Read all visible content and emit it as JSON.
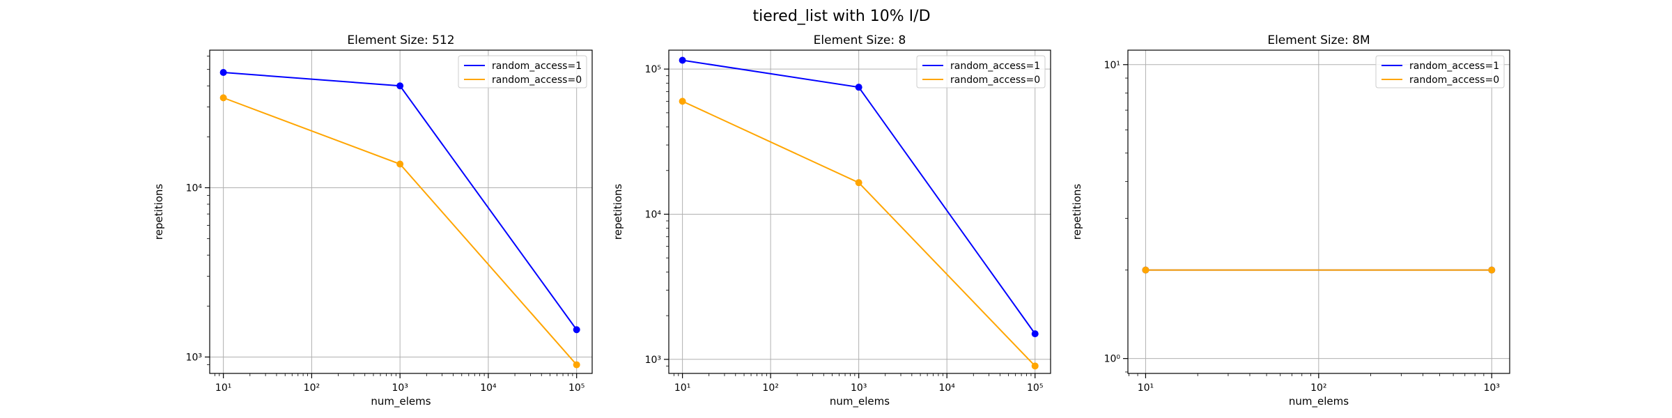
{
  "figure_title": "tiered_list with 10% I/D",
  "chart_data": [
    {
      "type": "line",
      "title": "Element Size: 512",
      "xlabel": "num_elems",
      "ylabel": "repetitions",
      "xscale": "log",
      "yscale": "log",
      "xlim": [
        7,
        150000
      ],
      "ylim": [
        800,
        65000
      ],
      "x_ticks": [
        10,
        100,
        1000,
        10000,
        100000
      ],
      "x_tick_labels": [
        "10¹",
        "10²",
        "10³",
        "10⁴",
        "10⁵"
      ],
      "y_ticks": [
        1000,
        10000
      ],
      "y_tick_labels": [
        "10³",
        "10⁴"
      ],
      "grid": true,
      "legend_position": "upper right",
      "series": [
        {
          "name": "random_access=1",
          "color": "#0000ff",
          "x": [
            10,
            1000,
            100000
          ],
          "y": [
            48000,
            40000,
            1450
          ]
        },
        {
          "name": "random_access=0",
          "color": "#ffa500",
          "x": [
            10,
            1000,
            100000
          ],
          "y": [
            34000,
            13800,
            900
          ]
        }
      ]
    },
    {
      "type": "line",
      "title": "Element Size: 8",
      "xlabel": "num_elems",
      "ylabel": "repetitions",
      "xscale": "log",
      "yscale": "log",
      "xlim": [
        7,
        150000
      ],
      "ylim": [
        800,
        135000
      ],
      "x_ticks": [
        10,
        100,
        1000,
        10000,
        100000
      ],
      "x_tick_labels": [
        "10¹",
        "10²",
        "10³",
        "10⁴",
        "10⁵"
      ],
      "y_ticks": [
        1000,
        10000,
        100000
      ],
      "y_tick_labels": [
        "10³",
        "10⁴",
        "10⁵"
      ],
      "grid": true,
      "legend_position": "upper right",
      "series": [
        {
          "name": "random_access=1",
          "color": "#0000ff",
          "x": [
            10,
            1000,
            100000
          ],
          "y": [
            115000,
            75000,
            1500
          ]
        },
        {
          "name": "random_access=0",
          "color": "#ffa500",
          "x": [
            10,
            1000,
            100000
          ],
          "y": [
            60000,
            16500,
            900
          ]
        }
      ]
    },
    {
      "type": "line",
      "title": "Element Size: 8M",
      "xlabel": "num_elems",
      "ylabel": "repetitions",
      "xscale": "log",
      "yscale": "log",
      "xlim": [
        7.9,
        1270
      ],
      "ylim": [
        0.89,
        11.2
      ],
      "x_ticks": [
        10,
        100,
        1000
      ],
      "x_tick_labels": [
        "10¹",
        "10²",
        "10³"
      ],
      "y_ticks": [
        1,
        10
      ],
      "y_tick_labels": [
        "10⁰",
        "10¹"
      ],
      "grid": true,
      "legend_position": "upper right",
      "series": [
        {
          "name": "random_access=1",
          "color": "#0000ff",
          "x": [
            10,
            1000
          ],
          "y": [
            2,
            2
          ]
        },
        {
          "name": "random_access=0",
          "color": "#ffa500",
          "x": [
            10,
            1000
          ],
          "y": [
            2,
            2
          ]
        }
      ]
    }
  ]
}
